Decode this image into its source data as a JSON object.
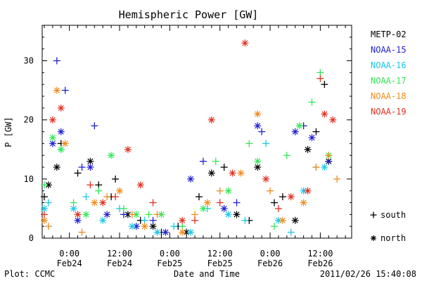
{
  "chart_data": {
    "type": "scatter",
    "title": "Hemispheric Power [GW]",
    "xlabel": "Date and Time",
    "ylabel": "P [GW]",
    "ylim": [
      0,
      36
    ],
    "xlim_hours": "Feb23 17:30 to Feb26 19:30",
    "y_ticks": [
      0,
      10,
      20,
      30
    ],
    "x_ticks": [
      {
        "time": "0:00",
        "date": "Feb24"
      },
      {
        "time": "12:00",
        "date": "Feb24"
      },
      {
        "time": "0:00",
        "date": "Feb25"
      },
      {
        "time": "12:00",
        "date": "Feb25"
      },
      {
        "time": "0:00",
        "date": "Feb26"
      },
      {
        "time": "12:00",
        "date": "Feb26"
      }
    ],
    "grid": false,
    "legend_position": "right",
    "markers": {
      "plus": "south",
      "star": "north"
    },
    "series": [
      {
        "name": "METP-02",
        "color": "#000000",
        "x": [
          "Feb23 18:00",
          "Feb23 19:00",
          "Feb23 21:00",
          "Feb23 22:00",
          "Feb24 02:00",
          "Feb24 05:00",
          "Feb24 07:00",
          "Feb24 10:00",
          "Feb24 11:00",
          "Feb24 14:00",
          "Feb24 17:00",
          "Feb24 20:00",
          "Feb24 22:00",
          "Feb25 02:00",
          "Feb25 04:00",
          "Feb25 07:00",
          "Feb25 10:00",
          "Feb25 13:00",
          "Feb25 16:00",
          "Feb25 19:00",
          "Feb25 21:00",
          "Feb26 01:00",
          "Feb26 03:00",
          "Feb26 06:00",
          "Feb26 09:00",
          "Feb26 11:00",
          "Feb26 13:00",
          "Feb26 14:00"
        ],
        "values": [
          7,
          9,
          12,
          16,
          11,
          13,
          9,
          7,
          10,
          4,
          3,
          2,
          1,
          2,
          1,
          7,
          11,
          12,
          4,
          3,
          12,
          6,
          7,
          3,
          15,
          18,
          26,
          13
        ],
        "types": [
          "plus",
          "star",
          "star",
          "plus",
          "plus",
          "star",
          "plus",
          "plus",
          "plus",
          "star",
          "plus",
          "star",
          "plus",
          "plus",
          "star",
          "plus",
          "star",
          "plus",
          "star",
          "plus",
          "star",
          "plus",
          "plus",
          "star",
          "star",
          "plus",
          "plus",
          "star"
        ]
      },
      {
        "name": "NOAA-15",
        "color": "#1f1fd0",
        "x": [
          "Feb23 20:00",
          "Feb23 21:00",
          "Feb23 22:00",
          "Feb23 23:00",
          "Feb24 02:00",
          "Feb24 03:00",
          "Feb24 05:00",
          "Feb24 06:00",
          "Feb24 09:00",
          "Feb24 13:00",
          "Feb24 16:00",
          "Feb24 20:00",
          "Feb24 23:00",
          "Feb25 05:00",
          "Feb25 08:00",
          "Feb25 13:00",
          "Feb25 16:00",
          "Feb25 21:00",
          "Feb25 22:00",
          "Feb26 06:00",
          "Feb26 08:00",
          "Feb26 10:00",
          "Feb26 14:00"
        ],
        "values": [
          16,
          30,
          18,
          25,
          3,
          12,
          12,
          19,
          4,
          4,
          2,
          3,
          1,
          10,
          13,
          5,
          6,
          19,
          18,
          18,
          19,
          17,
          13
        ],
        "types": [
          "star",
          "plus",
          "star",
          "plus",
          "star",
          "plus",
          "star",
          "plus",
          "star",
          "plus",
          "star",
          "plus",
          "star",
          "star",
          "plus",
          "star",
          "plus",
          "star",
          "plus",
          "star",
          "plus",
          "star",
          "plus"
        ]
      },
      {
        "name": "NOAA-16",
        "color": "#18c8e8",
        "x": [
          "Feb23 18:00",
          "Feb23 19:00",
          "Feb23 22:00",
          "Feb24 01:00",
          "Feb24 04:00",
          "Feb24 08:00",
          "Feb24 12:00",
          "Feb24 15:00",
          "Feb24 18:00",
          "Feb24 21:00",
          "Feb25 01:00",
          "Feb25 05:00",
          "Feb25 09:00",
          "Feb25 14:00",
          "Feb25 18:00",
          "Feb25 23:00",
          "Feb26 02:00",
          "Feb26 05:00",
          "Feb26 08:00",
          "Feb26 11:00",
          "Feb26 13:00"
        ],
        "values": [
          5,
          6,
          15,
          5,
          7,
          3,
          5,
          2,
          3,
          1,
          2,
          1,
          5,
          4,
          3,
          16,
          3,
          1,
          8,
          12,
          12
        ],
        "types": [
          "star",
          "plus",
          "plus",
          "star",
          "plus",
          "star",
          "plus",
          "star",
          "plus",
          "star",
          "plus",
          "star",
          "plus",
          "star",
          "plus",
          "plus",
          "star",
          "plus",
          "star",
          "plus",
          "star"
        ]
      },
      {
        "name": "NOAA-17",
        "color": "#30e858",
        "x": [
          "Feb23 18:00",
          "Feb23 20:00",
          "Feb23 22:00",
          "Feb24 01:00",
          "Feb24 04:00",
          "Feb24 07:00",
          "Feb24 10:00",
          "Feb24 13:00",
          "Feb24 16:00",
          "Feb24 19:00",
          "Feb24 22:00",
          "Feb25 03:00",
          "Feb25 08:00",
          "Feb25 11:00",
          "Feb25 14:00",
          "Feb25 19:00",
          "Feb25 21:00",
          "Feb26 01:00",
          "Feb26 04:00",
          "Feb26 07:00",
          "Feb26 10:00",
          "Feb26 12:00",
          "Feb26 14:00"
        ],
        "values": [
          9,
          17,
          15,
          6,
          4,
          8,
          14,
          5,
          4,
          4,
          4,
          2,
          5,
          13,
          8,
          16,
          13,
          2,
          14,
          19,
          23,
          28,
          14
        ],
        "types": [
          "plus",
          "star",
          "star",
          "plus",
          "star",
          "plus",
          "star",
          "plus",
          "star",
          "plus",
          "star",
          "plus",
          "star",
          "plus",
          "star",
          "plus",
          "star",
          "plus",
          "plus",
          "star",
          "plus",
          "plus",
          "star"
        ]
      },
      {
        "name": "NOAA-18",
        "color": "#f08c1c",
        "x": [
          "Feb23 18:00",
          "Feb23 19:00",
          "Feb23 21:00",
          "Feb23 23:00",
          "Feb24 03:00",
          "Feb24 06:00",
          "Feb24 09:00",
          "Feb24 12:00",
          "Feb24 15:00",
          "Feb24 18:00",
          "Feb24 21:00",
          "Feb25 03:00",
          "Feb25 06:00",
          "Feb25 09:00",
          "Feb25 12:00",
          "Feb25 17:00",
          "Feb25 21:00",
          "Feb26 00:00",
          "Feb26 03:00",
          "Feb26 08:00",
          "Feb26 11:00",
          "Feb26 14:00",
          "Feb26 16:00"
        ],
        "values": [
          3,
          2,
          25,
          16,
          1,
          6,
          7,
          8,
          4,
          2,
          4,
          1,
          4,
          6,
          8,
          11,
          21,
          8,
          3,
          6,
          12,
          14,
          10
        ],
        "types": [
          "star",
          "plus",
          "star",
          "star",
          "plus",
          "star",
          "plus",
          "star",
          "plus",
          "star",
          "plus",
          "star",
          "plus",
          "star",
          "plus",
          "star",
          "star",
          "plus",
          "star",
          "star",
          "plus",
          "plus",
          "plus"
        ]
      },
      {
        "name": "NOAA-19",
        "color": "#e03020",
        "x": [
          "Feb23 18:00",
          "Feb23 20:00",
          "Feb23 22:00",
          "Feb24 02:00",
          "Feb24 05:00",
          "Feb24 08:00",
          "Feb24 11:00",
          "Feb24 14:00",
          "Feb24 17:00",
          "Feb24 20:00",
          "Feb25 03:00",
          "Feb25 06:00",
          "Feb25 10:00",
          "Feb25 12:00",
          "Feb25 15:00",
          "Feb25 18:00",
          "Feb25 23:00",
          "Feb26 02:00",
          "Feb26 05:00",
          "Feb26 09:00",
          "Feb26 12:00",
          "Feb26 13:00",
          "Feb26 15:00"
        ],
        "values": [
          4,
          20,
          22,
          4,
          9,
          6,
          7,
          15,
          9,
          6,
          3,
          3,
          20,
          6,
          11,
          33,
          10,
          5,
          7,
          8,
          27,
          21,
          20
        ],
        "types": [
          "plus",
          "star",
          "star",
          "star",
          "plus",
          "star",
          "plus",
          "star",
          "star",
          "plus",
          "star",
          "plus",
          "star",
          "plus",
          "star",
          "star",
          "star",
          "plus",
          "star",
          "star",
          "plus",
          "star",
          "star"
        ]
      }
    ]
  },
  "footer": {
    "left": "Plot: CCMC",
    "center": "Date and Time",
    "right": "2011/02/26 15:40:08"
  },
  "legend_markers": {
    "south_label": "south",
    "north_label": "north"
  }
}
